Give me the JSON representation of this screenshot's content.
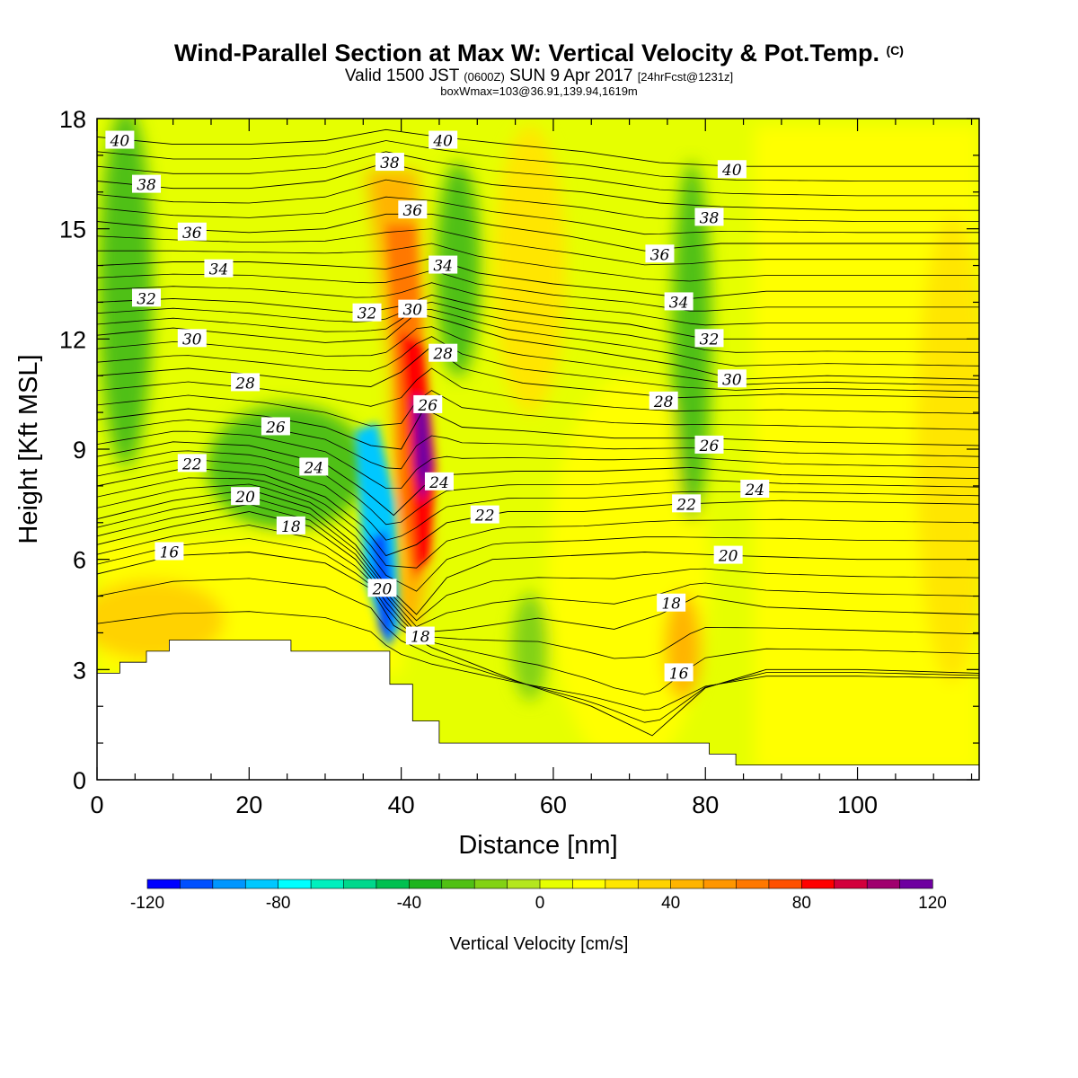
{
  "header": {
    "title_main": "Wind-Parallel Section at Max W: Vertical Velocity & Pot.Temp.",
    "title_mark": "(C)",
    "line2_a": "Valid 1500 JST",
    "line2_b": "(0600Z)",
    "line2_c": "SUN 9 Apr 2017",
    "line2_d": "[24hrFcst@1231z]",
    "line3": "boxWmax=103@36.91,139.94,1619m"
  },
  "chart_data": {
    "type": "heatmap",
    "xlabel": "Distance [nm]",
    "ylabel": "Height [Kft MSL]",
    "xlim": [
      0,
      116
    ],
    "ylim": [
      0,
      18
    ],
    "xticks": [
      0,
      20,
      40,
      60,
      80,
      100
    ],
    "yticks": [
      0,
      3,
      6,
      9,
      12,
      15,
      18
    ],
    "colorbar": {
      "label": "Vertical Velocity [cm/s]",
      "range": [
        -120,
        120
      ],
      "step": 10,
      "tick_labels": [
        "-120",
        "-80",
        "-40",
        "0",
        "40",
        "80",
        "120"
      ],
      "colors": [
        "#0000ff",
        "#0050ff",
        "#0096ff",
        "#00c8ff",
        "#00ffff",
        "#00f0be",
        "#00d88c",
        "#00c050",
        "#1eb41e",
        "#50c014",
        "#82d214",
        "#b4e61e",
        "#e6ff00",
        "#ffff00",
        "#ffe600",
        "#ffd200",
        "#ffb400",
        "#ff9600",
        "#ff7800",
        "#ff5000",
        "#ff0000",
        "#d2003c",
        "#a0006e",
        "#6e00a0"
      ]
    },
    "field_features": [
      {
        "name": "updraft-core",
        "x": 43,
        "y": 9.5,
        "value": 103
      },
      {
        "name": "downdraft-core",
        "x": 38,
        "y": 5,
        "value": -120
      },
      {
        "name": "upper-green-band-left",
        "x": 5,
        "y": 13,
        "value": -35
      },
      {
        "name": "upper-green-band-right",
        "x": 78,
        "y": 12,
        "value": -30
      }
    ],
    "terrain": [
      [
        0,
        2.9
      ],
      [
        3,
        2.9
      ],
      [
        3,
        3.2
      ],
      [
        6.5,
        3.2
      ],
      [
        6.5,
        3.5
      ],
      [
        9.5,
        3.5
      ],
      [
        9.5,
        3.8
      ],
      [
        25.5,
        3.8
      ],
      [
        25.5,
        3.5
      ],
      [
        38.5,
        3.5
      ],
      [
        38.5,
        2.6
      ],
      [
        41.5,
        2.6
      ],
      [
        41.5,
        1.6
      ],
      [
        45,
        1.6
      ],
      [
        45,
        1
      ],
      [
        80.5,
        1
      ],
      [
        80.5,
        0.7
      ],
      [
        84,
        0.7
      ],
      [
        84,
        0.4
      ],
      [
        116,
        0.4
      ]
    ],
    "theta_contours": [
      {
        "label": "16",
        "points": [
          [
            0,
            5.6
          ],
          [
            10,
            6.1
          ],
          [
            20,
            6.2
          ],
          [
            30,
            5.9
          ],
          [
            36,
            5.2
          ],
          [
            39,
            4.2
          ],
          [
            44,
            3.6
          ],
          [
            55,
            2.7
          ],
          [
            65,
            2.0
          ],
          [
            73,
            1.2
          ],
          [
            80,
            2.5
          ],
          [
            88,
            3.0
          ],
          [
            100,
            3.0
          ],
          [
            116,
            2.9
          ]
        ],
        "labels_at": [
          [
            9.5,
            6.2
          ],
          [
            76.5,
            2.9
          ]
        ]
      },
      {
        "label": "18",
        "points": [
          [
            0,
            6.4
          ],
          [
            10,
            6.9
          ],
          [
            20,
            7.3
          ],
          [
            28,
            6.9
          ],
          [
            34,
            6.0
          ],
          [
            38,
            5.0
          ],
          [
            42,
            4.0
          ],
          [
            48,
            4.1
          ],
          [
            58,
            4.4
          ],
          [
            68,
            4.1
          ],
          [
            74,
            4.5
          ],
          [
            79,
            5.0
          ],
          [
            88,
            4.7
          ],
          [
            100,
            4.6
          ],
          [
            116,
            4.5
          ]
        ],
        "labels_at": [
          [
            25.5,
            6.9
          ],
          [
            42.5,
            3.9
          ],
          [
            75.5,
            4.8
          ]
        ]
      },
      {
        "label": "20",
        "points": [
          [
            0,
            7.1
          ],
          [
            10,
            7.6
          ],
          [
            20,
            7.9
          ],
          [
            28,
            7.4
          ],
          [
            34,
            6.4
          ],
          [
            38,
            5.3
          ],
          [
            42,
            4.5
          ],
          [
            46,
            5.5
          ],
          [
            52,
            6.0
          ],
          [
            62,
            6.1
          ],
          [
            72,
            6.2
          ],
          [
            84,
            6.1
          ],
          [
            100,
            6.0
          ],
          [
            116,
            6.0
          ]
        ],
        "labels_at": [
          [
            19.5,
            7.7
          ],
          [
            37.5,
            5.2
          ],
          [
            83,
            6.1
          ]
        ]
      },
      {
        "label": "22",
        "points": [
          [
            0,
            8.0
          ],
          [
            12,
            8.5
          ],
          [
            22,
            8.3
          ],
          [
            30,
            7.7
          ],
          [
            35,
            6.9
          ],
          [
            38,
            6.1
          ],
          [
            42,
            6.4
          ],
          [
            46,
            7.0
          ],
          [
            54,
            7.3
          ],
          [
            64,
            7.3
          ],
          [
            76,
            7.5
          ],
          [
            90,
            7.6
          ],
          [
            116,
            7.5
          ]
        ],
        "labels_at": [
          [
            12.5,
            8.6
          ],
          [
            51,
            7.2
          ],
          [
            77.5,
            7.5
          ]
        ]
      },
      {
        "label": "24",
        "points": [
          [
            0,
            8.8
          ],
          [
            10,
            9.2
          ],
          [
            20,
            9.1
          ],
          [
            30,
            8.6
          ],
          [
            35,
            7.9
          ],
          [
            39,
            7.2
          ],
          [
            43,
            8.0
          ],
          [
            46,
            8.3
          ],
          [
            55,
            8.4
          ],
          [
            66,
            8.4
          ],
          [
            78,
            8.5
          ],
          [
            90,
            8.3
          ],
          [
            116,
            8.2
          ]
        ],
        "labels_at": [
          [
            28.5,
            8.5
          ],
          [
            45,
            8.1
          ],
          [
            86.5,
            7.9
          ]
        ]
      },
      {
        "label": "26",
        "points": [
          [
            0,
            9.8
          ],
          [
            12,
            10.1
          ],
          [
            22,
            9.9
          ],
          [
            30,
            9.6
          ],
          [
            36,
            9.1
          ],
          [
            40,
            9.0
          ],
          [
            43,
            10.1
          ],
          [
            48,
            9.6
          ],
          [
            56,
            9.5
          ],
          [
            68,
            9.3
          ],
          [
            80,
            9.3
          ],
          [
            92,
            9.2
          ],
          [
            116,
            9.1
          ]
        ],
        "labels_at": [
          [
            23.5,
            9.6
          ],
          [
            43.5,
            10.2
          ],
          [
            80.5,
            9.1
          ]
        ]
      },
      {
        "label": "28",
        "points": [
          [
            0,
            11.0
          ],
          [
            12,
            11.2
          ],
          [
            22,
            11.0
          ],
          [
            30,
            10.8
          ],
          [
            36,
            10.7
          ],
          [
            40,
            11.1
          ],
          [
            44,
            11.8
          ],
          [
            48,
            11.2
          ],
          [
            56,
            10.8
          ],
          [
            66,
            10.6
          ],
          [
            76,
            10.4
          ],
          [
            90,
            10.5
          ],
          [
            116,
            10.4
          ]
        ],
        "labels_at": [
          [
            19.5,
            10.8
          ],
          [
            45.5,
            11.6
          ],
          [
            74.5,
            10.3
          ]
        ]
      },
      {
        "label": "30",
        "points": [
          [
            0,
            12.1
          ],
          [
            10,
            12.3
          ],
          [
            20,
            12.1
          ],
          [
            30,
            11.9
          ],
          [
            38,
            12.0
          ],
          [
            42,
            12.7
          ],
          [
            46,
            12.5
          ],
          [
            54,
            12.0
          ],
          [
            64,
            11.7
          ],
          [
            76,
            11.3
          ],
          [
            84,
            10.9
          ],
          [
            96,
            11.0
          ],
          [
            116,
            10.9
          ]
        ],
        "labels_at": [
          [
            12.5,
            12.0
          ],
          [
            41.5,
            12.8
          ],
          [
            83.5,
            10.9
          ]
        ]
      },
      {
        "label": "32",
        "points": [
          [
            0,
            13.0
          ],
          [
            10,
            13.1
          ],
          [
            20,
            13.0
          ],
          [
            30,
            12.8
          ],
          [
            35,
            12.7
          ],
          [
            40,
            12.9
          ],
          [
            44,
            13.2
          ],
          [
            50,
            12.9
          ],
          [
            60,
            12.6
          ],
          [
            70,
            12.4
          ],
          [
            80,
            12.0
          ],
          [
            92,
            12.0
          ],
          [
            116,
            12.0
          ]
        ],
        "labels_at": [
          [
            6.5,
            13.1
          ],
          [
            35.5,
            12.7
          ],
          [
            80.5,
            12.0
          ]
        ]
      },
      {
        "label": "34",
        "points": [
          [
            0,
            14.0
          ],
          [
            10,
            14.1
          ],
          [
            20,
            14.1
          ],
          [
            30,
            14.0
          ],
          [
            38,
            13.9
          ],
          [
            44,
            14.2
          ],
          [
            50,
            13.8
          ],
          [
            60,
            13.5
          ],
          [
            70,
            13.3
          ],
          [
            78,
            13.1
          ],
          [
            88,
            13.3
          ],
          [
            116,
            13.3
          ]
        ],
        "labels_at": [
          [
            16,
            13.9
          ],
          [
            45.5,
            14.0
          ],
          [
            76.5,
            13.0
          ]
        ]
      },
      {
        "label": "36",
        "points": [
          [
            0,
            15.2
          ],
          [
            10,
            15.0
          ],
          [
            20,
            14.9
          ],
          [
            30,
            15.0
          ],
          [
            38,
            15.4
          ],
          [
            44,
            15.4
          ],
          [
            52,
            15.1
          ],
          [
            62,
            14.8
          ],
          [
            72,
            14.4
          ],
          [
            82,
            14.6
          ],
          [
            100,
            14.6
          ],
          [
            116,
            14.6
          ]
        ],
        "labels_at": [
          [
            12.5,
            14.9
          ],
          [
            41.5,
            15.5
          ],
          [
            74,
            14.3
          ]
        ]
      },
      {
        "label": "38",
        "points": [
          [
            0,
            16.3
          ],
          [
            10,
            16.1
          ],
          [
            20,
            16.1
          ],
          [
            30,
            16.3
          ],
          [
            38,
            16.8
          ],
          [
            44,
            16.5
          ],
          [
            52,
            16.2
          ],
          [
            64,
            16.0
          ],
          [
            74,
            15.7
          ],
          [
            82,
            15.6
          ],
          [
            100,
            15.5
          ],
          [
            116,
            15.5
          ]
        ],
        "labels_at": [
          [
            6.5,
            16.2
          ],
          [
            38.5,
            16.8
          ],
          [
            80.5,
            15.3
          ]
        ]
      },
      {
        "label": "40",
        "points": [
          [
            0,
            17.5
          ],
          [
            10,
            17.3
          ],
          [
            20,
            17.3
          ],
          [
            30,
            17.4
          ],
          [
            38,
            17.7
          ],
          [
            45,
            17.5
          ],
          [
            54,
            17.3
          ],
          [
            64,
            17.1
          ],
          [
            74,
            16.8
          ],
          [
            84,
            16.7
          ],
          [
            100,
            16.7
          ],
          [
            116,
            16.7
          ]
        ],
        "labels_at": [
          [
            3,
            17.4
          ],
          [
            45.5,
            17.4
          ],
          [
            83.5,
            16.6
          ]
        ]
      }
    ]
  }
}
